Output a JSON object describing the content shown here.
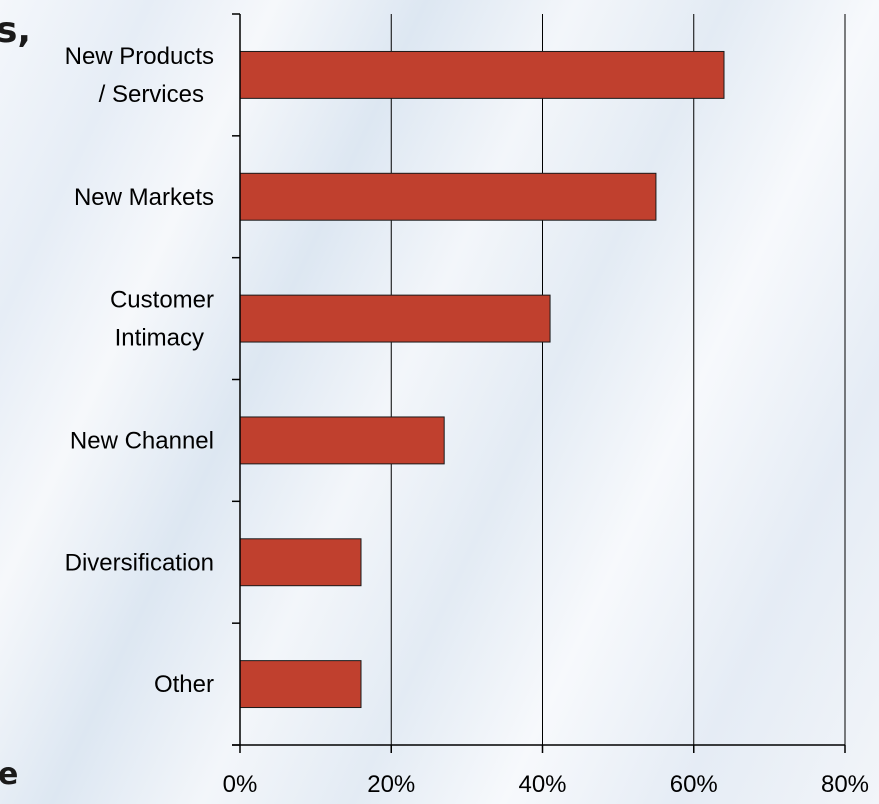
{
  "fragments": {
    "top": "s,",
    "bottom": "e"
  },
  "chart_data": {
    "type": "bar",
    "orientation": "horizontal",
    "categories": [
      [
        "New Products",
        "/ Services"
      ],
      [
        "New Markets"
      ],
      [
        "Customer",
        "Intimacy"
      ],
      [
        "New Channel"
      ],
      [
        "Diversification"
      ],
      [
        "Other"
      ]
    ],
    "values": [
      64,
      55,
      41,
      27,
      16,
      16
    ],
    "xlim": [
      0,
      80
    ],
    "x_ticks": [
      0,
      20,
      40,
      60,
      80
    ],
    "x_tick_labels": [
      "0%",
      "20%",
      "40%",
      "60%",
      "80%"
    ],
    "grid": true,
    "colors": {
      "bar": "#c0402e",
      "bar_stroke": "#1a1a1a",
      "axis": "#000000",
      "text": "#000000"
    }
  }
}
